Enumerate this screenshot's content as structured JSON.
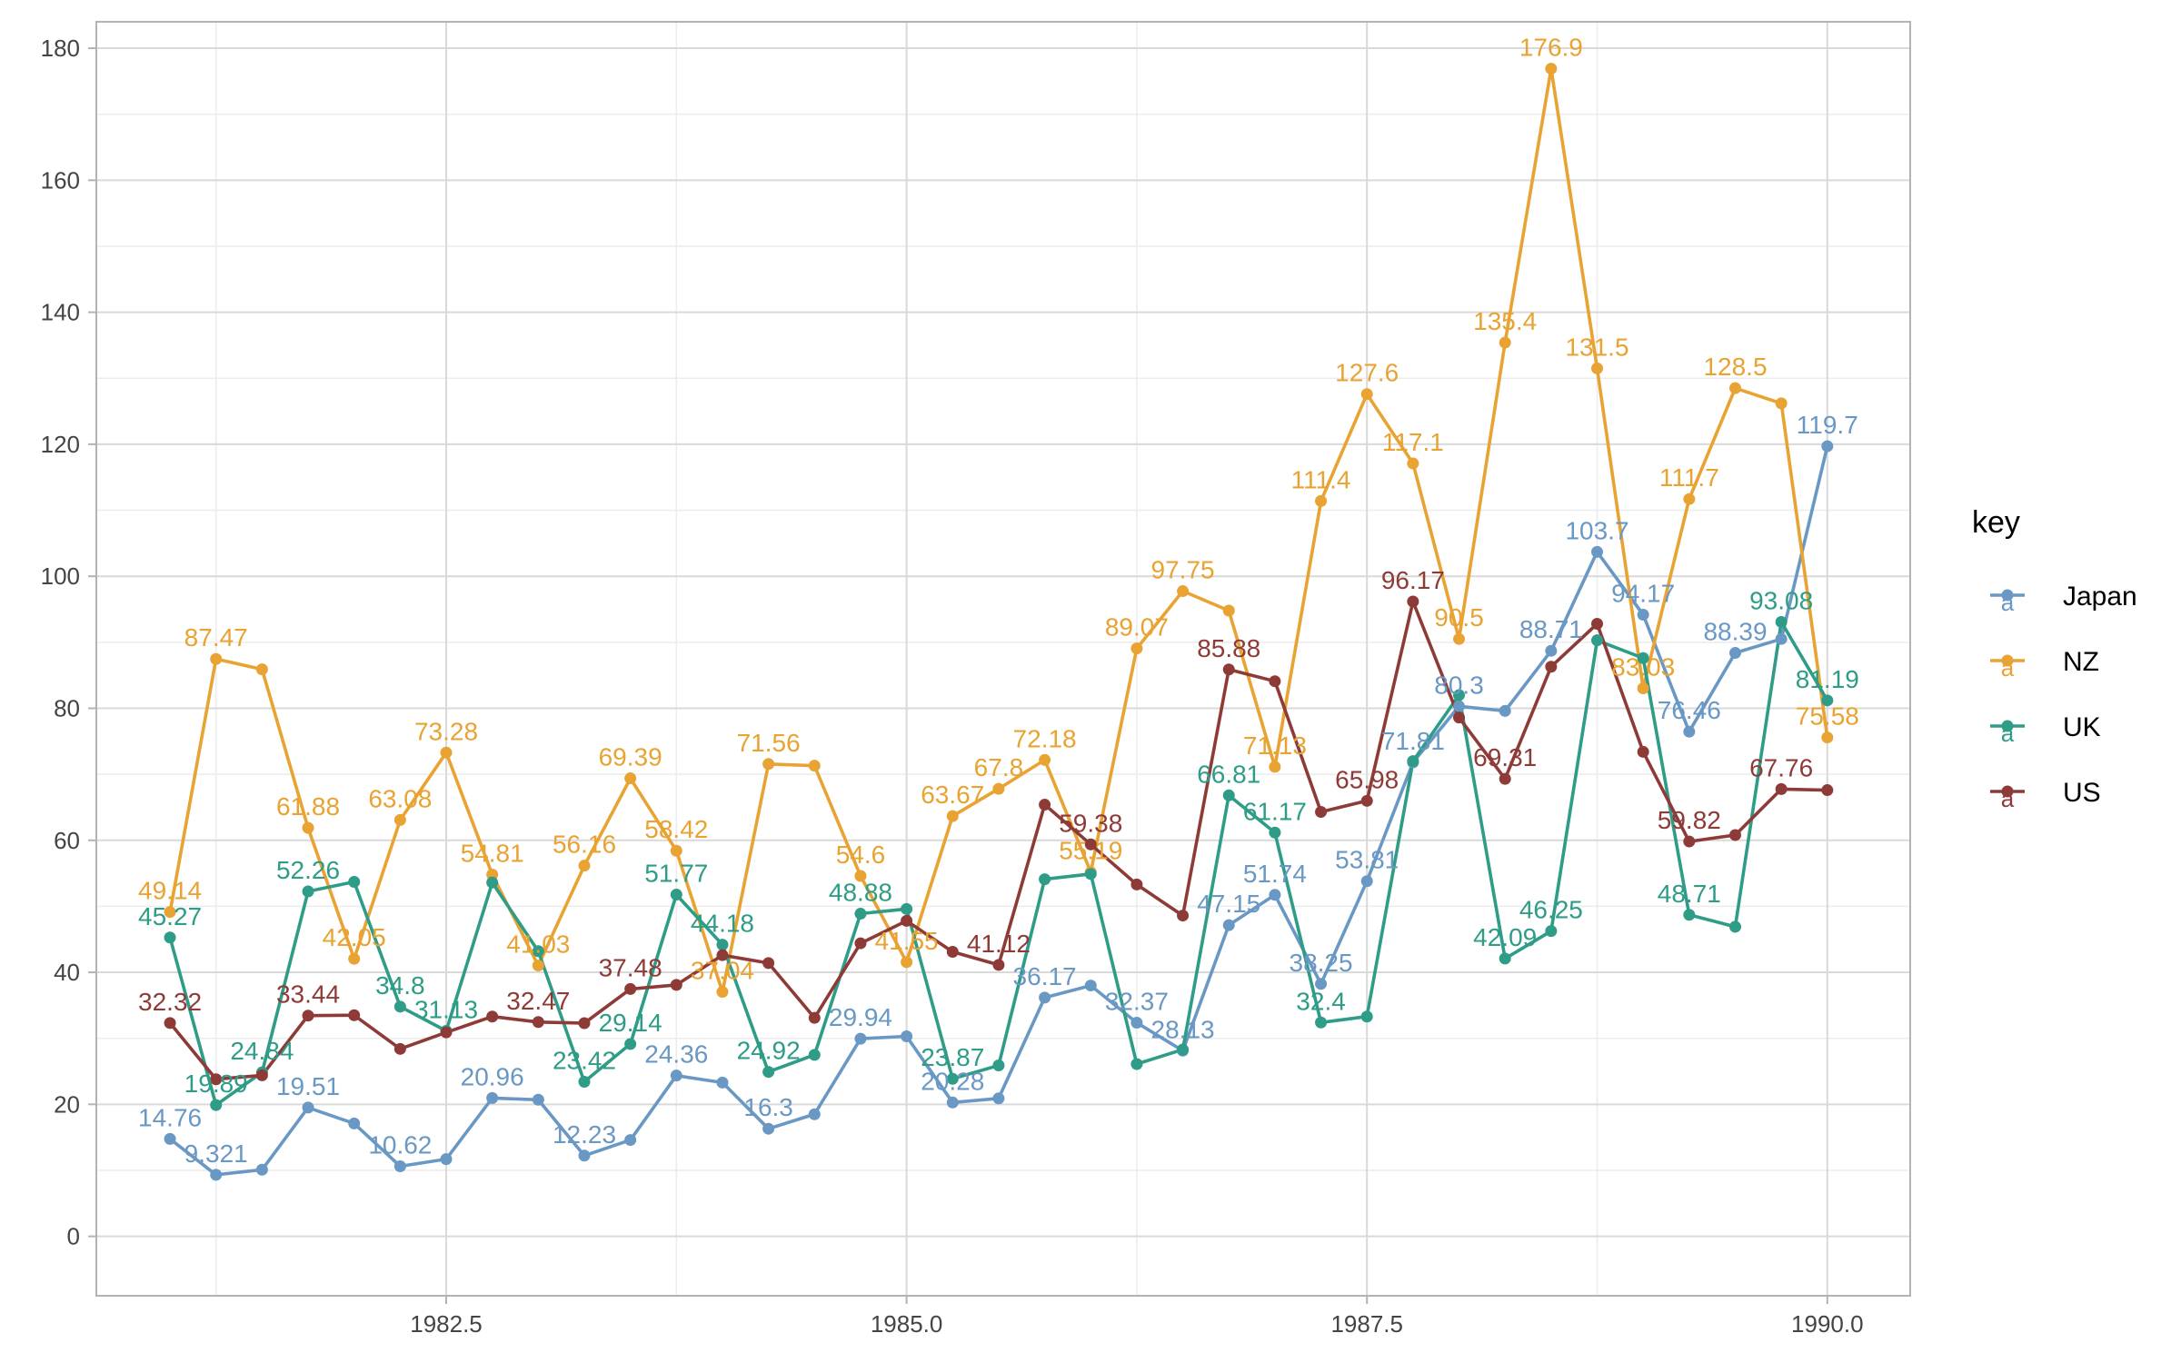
{
  "chart_data": {
    "type": "line",
    "title": "",
    "xlabel": "",
    "ylabel": "",
    "x": [
      1981.0,
      1981.25,
      1981.5,
      1981.75,
      1982.0,
      1982.25,
      1982.5,
      1982.75,
      1983.0,
      1983.25,
      1983.5,
      1983.75,
      1984.0,
      1984.25,
      1984.5,
      1984.75,
      1985.0,
      1985.25,
      1985.5,
      1985.75,
      1986.0,
      1986.25,
      1986.5,
      1986.75,
      1987.0,
      1987.25,
      1987.5,
      1987.75,
      1988.0,
      1988.25,
      1988.5,
      1988.75,
      1989.0,
      1989.25,
      1989.5,
      1989.75,
      1990.0
    ],
    "xlim": [
      1980.6,
      1990.45
    ],
    "ylim": [
      -9,
      184
    ],
    "x_ticks": [
      1982.5,
      1985.0,
      1987.5,
      1990.0
    ],
    "x_tick_labels": [
      "1982.5",
      "1985.0",
      "1987.5",
      "1990.0"
    ],
    "y_ticks": [
      0,
      20,
      40,
      60,
      80,
      100,
      120,
      140,
      160,
      180
    ],
    "y_tick_labels": [
      "0",
      "20",
      "40",
      "60",
      "80",
      "100",
      "120",
      "140",
      "160",
      "180"
    ],
    "grid": true,
    "legend": {
      "title": "key",
      "position": "right",
      "key_glyph": "a"
    },
    "series": [
      {
        "name": "Japan",
        "color": "#6a98c4",
        "values": [
          14.76,
          9.321,
          10.1,
          19.51,
          17.1,
          10.62,
          11.7,
          20.96,
          20.7,
          12.23,
          14.6,
          24.36,
          23.3,
          16.3,
          18.5,
          29.94,
          30.3,
          20.28,
          20.9,
          36.17,
          38.0,
          32.37,
          28.13,
          47.15,
          51.74,
          38.25,
          53.81,
          71.81,
          80.3,
          79.6,
          88.71,
          103.7,
          94.17,
          76.46,
          88.39,
          90.5,
          119.7
        ],
        "labels": [
          "14.76",
          "9.321",
          "",
          "19.51",
          "",
          "10.62",
          "",
          "20.96",
          "",
          "12.23",
          "",
          "24.36",
          "",
          "16.3",
          "",
          "29.94",
          "",
          "20.28",
          "",
          "36.17",
          "",
          "32.37",
          "28.13",
          "47.15",
          "51.74",
          "38.25",
          "53.81",
          "71.81",
          "80.3",
          "",
          "88.71",
          "103.7",
          "94.17",
          "76.46",
          "88.39",
          "",
          "119.7"
        ]
      },
      {
        "name": "NZ",
        "color": "#e8a332",
        "values": [
          49.14,
          87.47,
          85.9,
          61.88,
          42.05,
          63.08,
          73.28,
          54.81,
          41.03,
          56.16,
          69.39,
          58.42,
          37.04,
          71.56,
          71.3,
          54.6,
          41.55,
          63.67,
          67.8,
          72.18,
          55.19,
          89.07,
          97.75,
          94.8,
          71.13,
          111.4,
          127.6,
          117.1,
          90.5,
          135.4,
          176.9,
          131.5,
          83.03,
          111.7,
          128.5,
          126.2,
          75.58
        ],
        "labels": [
          "49.14",
          "87.47",
          "",
          "61.88",
          "42.05",
          "63.08",
          "73.28",
          "54.81",
          "41.03",
          "56.16",
          "69.39",
          "58.42",
          "37.04",
          "71.56",
          "",
          "54.6",
          "41.55",
          "63.67",
          "67.8",
          "72.18",
          "55.19",
          "89.07",
          "97.75",
          "",
          "71.13",
          "111.4",
          "127.6",
          "117.1",
          "90.5",
          "135.4",
          "176.9",
          "131.5",
          "83.03",
          "111.7",
          "128.5",
          "",
          "75.58"
        ]
      },
      {
        "name": "UK",
        "color": "#2e9c87",
        "values": [
          45.27,
          19.89,
          24.84,
          52.26,
          53.7,
          34.8,
          31.13,
          53.6,
          43.2,
          23.42,
          29.14,
          51.77,
          44.18,
          24.92,
          27.5,
          48.88,
          49.6,
          23.87,
          25.9,
          54.1,
          54.9,
          26.1,
          28.3,
          66.81,
          61.17,
          32.4,
          33.3,
          72.0,
          82.0,
          42.09,
          46.25,
          90.3,
          87.6,
          48.71,
          46.9,
          93.08,
          81.19
        ],
        "labels": [
          "45.27",
          "19.89",
          "24.84",
          "52.26",
          "",
          "34.8",
          "31.13",
          "",
          "",
          "23.42",
          "29.14",
          "51.77",
          "44.18",
          "24.92",
          "",
          "48.88",
          "",
          "23.87",
          "",
          "",
          "",
          "",
          "",
          "66.81",
          "61.17",
          "32.4",
          "",
          "",
          "",
          "42.09",
          "46.25",
          "",
          "",
          "48.71",
          "",
          "93.08",
          "81.19"
        ]
      },
      {
        "name": "US",
        "color": "#8e3b38",
        "values": [
          32.32,
          23.8,
          24.4,
          33.44,
          33.5,
          28.4,
          30.9,
          33.3,
          32.47,
          32.3,
          37.48,
          38.1,
          42.6,
          41.4,
          33.1,
          44.4,
          47.8,
          43.1,
          41.12,
          65.4,
          59.38,
          53.3,
          48.6,
          85.88,
          84.1,
          64.3,
          65.98,
          96.17,
          78.6,
          69.31,
          86.3,
          92.8,
          73.4,
          59.82,
          60.8,
          67.76,
          67.6
        ],
        "labels": [
          "32.32",
          "",
          "",
          "33.44",
          "",
          "",
          "",
          "",
          "32.47",
          "",
          "37.48",
          "",
          "",
          "",
          "",
          "",
          "",
          "",
          "41.12",
          "",
          "59.38",
          "",
          "",
          "85.88",
          "",
          "",
          "65.98",
          "96.17",
          "",
          "69.31",
          "",
          "",
          "",
          "59.82",
          "",
          "67.76",
          ""
        ]
      }
    ]
  }
}
